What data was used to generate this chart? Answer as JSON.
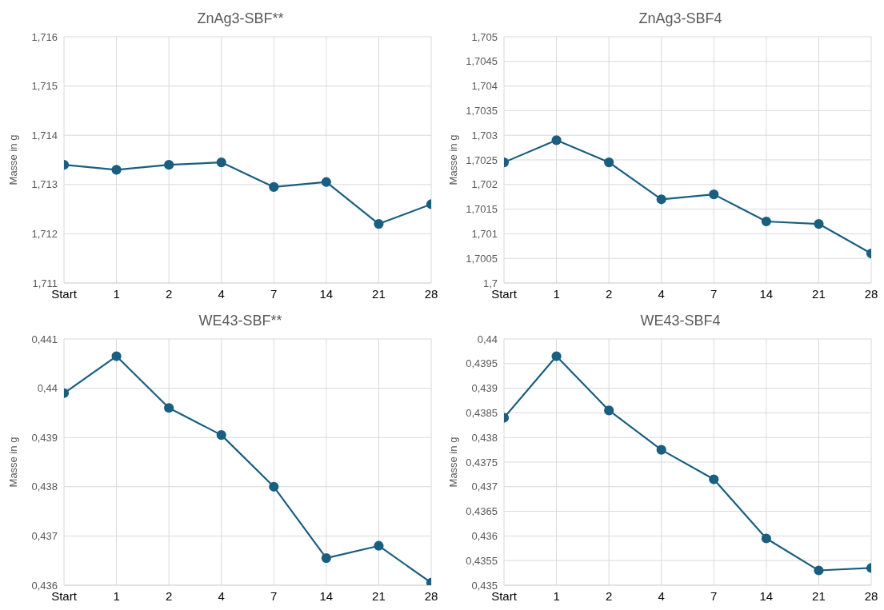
{
  "chart_data": [
    {
      "type": "line",
      "title": "ZnAg3-SBF**",
      "ylabel": "Masse in g",
      "categories": [
        "Start",
        "1",
        "2",
        "4",
        "7",
        "14",
        "21",
        "28"
      ],
      "series": [
        {
          "color": "#1a5e80",
          "values": [
            1.7134,
            1.7133,
            1.7134,
            1.71345,
            1.71295,
            1.71305,
            1.7122,
            1.7126
          ]
        }
      ],
      "ylim": [
        1.711,
        1.716
      ],
      "yticks": [
        {
          "value": 1.711,
          "label": "1,711"
        },
        {
          "value": 1.712,
          "label": "1,712"
        },
        {
          "value": 1.713,
          "label": "1,713"
        },
        {
          "value": 1.714,
          "label": "1,714"
        },
        {
          "value": 1.715,
          "label": "1,715"
        },
        {
          "value": 1.716,
          "label": "1,716"
        }
      ],
      "grid": true,
      "marker": "circle",
      "line_style": "solid"
    },
    {
      "type": "line",
      "title": "ZnAg3-SBF4",
      "ylabel": "Masse in g",
      "categories": [
        "Start",
        "1",
        "2",
        "4",
        "7",
        "14",
        "21",
        "28"
      ],
      "series": [
        {
          "color": "#1a5e80",
          "values": [
            1.70245,
            1.7029,
            1.70245,
            1.7017,
            1.7018,
            1.70125,
            1.7012,
            1.7006
          ]
        }
      ],
      "ylim": [
        1.7,
        1.705
      ],
      "yticks": [
        {
          "value": 1.7,
          "label": "1,7"
        },
        {
          "value": 1.7005,
          "label": "1,7005"
        },
        {
          "value": 1.701,
          "label": "1,701"
        },
        {
          "value": 1.7015,
          "label": "1,7015"
        },
        {
          "value": 1.702,
          "label": "1,702"
        },
        {
          "value": 1.7025,
          "label": "1,7025"
        },
        {
          "value": 1.703,
          "label": "1,703"
        },
        {
          "value": 1.7035,
          "label": "1,7035"
        },
        {
          "value": 1.704,
          "label": "1,704"
        },
        {
          "value": 1.7045,
          "label": "1,7045"
        },
        {
          "value": 1.705,
          "label": "1,705"
        }
      ],
      "grid": true,
      "marker": "circle",
      "line_style": "solid"
    },
    {
      "type": "line",
      "title": "WE43-SBF**",
      "ylabel": "Masse in g",
      "categories": [
        "Start",
        "1",
        "2",
        "4",
        "7",
        "14",
        "21",
        "28"
      ],
      "series": [
        {
          "color": "#1a5e80",
          "values": [
            0.4399,
            0.44065,
            0.4396,
            0.43905,
            0.438,
            0.43655,
            0.4368,
            0.43605
          ]
        }
      ],
      "ylim": [
        0.436,
        0.441
      ],
      "yticks": [
        {
          "value": 0.436,
          "label": "0,436"
        },
        {
          "value": 0.437,
          "label": "0,437"
        },
        {
          "value": 0.438,
          "label": "0,438"
        },
        {
          "value": 0.439,
          "label": "0,439"
        },
        {
          "value": 0.44,
          "label": "0,44"
        },
        {
          "value": 0.441,
          "label": "0,441"
        }
      ],
      "grid": true,
      "marker": "circle",
      "line_style": "solid"
    },
    {
      "type": "line",
      "title": "WE43-SBF4",
      "ylabel": "Masse in g",
      "categories": [
        "Start",
        "1",
        "2",
        "4",
        "7",
        "14",
        "21",
        "28"
      ],
      "series": [
        {
          "color": "#1a5e80",
          "values": [
            0.4384,
            0.43965,
            0.43855,
            0.43775,
            0.43715,
            0.43595,
            0.4353,
            0.43535
          ]
        }
      ],
      "ylim": [
        0.435,
        0.44
      ],
      "yticks": [
        {
          "value": 0.435,
          "label": "0,435"
        },
        {
          "value": 0.4355,
          "label": "0,4355"
        },
        {
          "value": 0.436,
          "label": "0,436"
        },
        {
          "value": 0.4365,
          "label": "0,4365"
        },
        {
          "value": 0.437,
          "label": "0,437"
        },
        {
          "value": 0.4375,
          "label": "0,4375"
        },
        {
          "value": 0.438,
          "label": "0,438"
        },
        {
          "value": 0.4385,
          "label": "0,4385"
        },
        {
          "value": 0.439,
          "label": "0,439"
        },
        {
          "value": 0.4395,
          "label": "0,4395"
        },
        {
          "value": 0.44,
          "label": "0,44"
        }
      ],
      "grid": true,
      "marker": "circle",
      "line_style": "solid"
    }
  ]
}
